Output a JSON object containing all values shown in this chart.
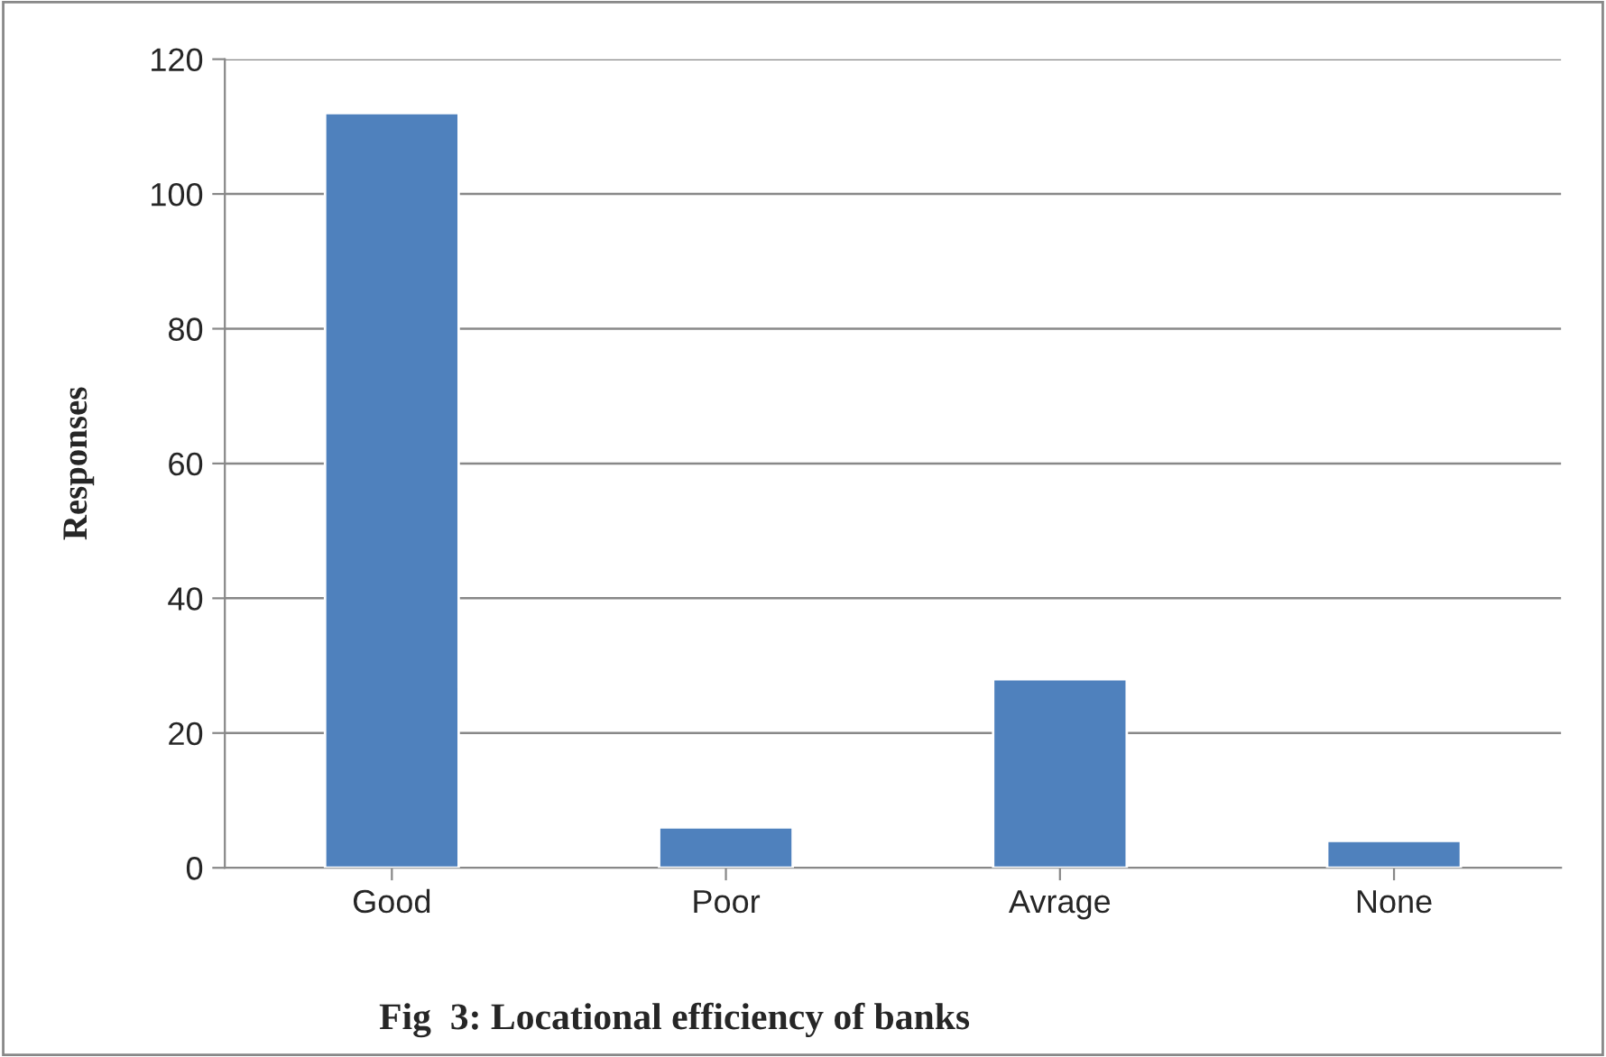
{
  "chart_data": {
    "type": "bar",
    "title": "Fig  3: Locational efficiency of banks",
    "ylabel": "Responses",
    "categories": [
      "Good",
      "Poor",
      "Avrage",
      "None"
    ],
    "values": [
      112,
      6,
      28,
      4
    ],
    "color": "#4f81bd",
    "ylim": [
      0,
      120
    ],
    "yticks": [
      0,
      20,
      40,
      60,
      80,
      100,
      120
    ],
    "grid": "y",
    "legend": false
  }
}
